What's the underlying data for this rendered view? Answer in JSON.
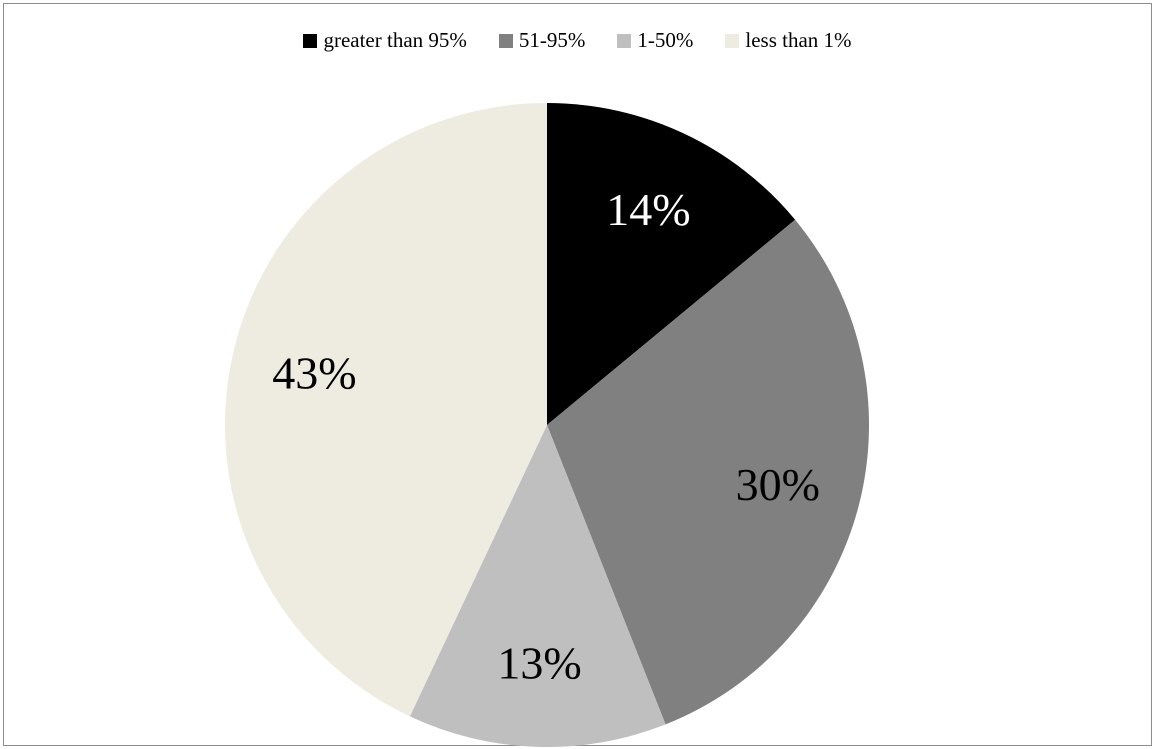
{
  "chart_data": {
    "type": "pie",
    "categories": [
      "greater than 95%",
      "51-95%",
      "1-50%",
      "less than 1%"
    ],
    "values": [
      14,
      30,
      13,
      43
    ],
    "labels": [
      "14%",
      "30%",
      "13%",
      "43%"
    ],
    "colors": [
      "#000000",
      "#808080",
      "#bfbfbf",
      "#eeebe0"
    ],
    "label_colors": [
      "#ffffff",
      "#000000",
      "#000000",
      "#000000"
    ],
    "title": "",
    "legend_position": "top"
  }
}
